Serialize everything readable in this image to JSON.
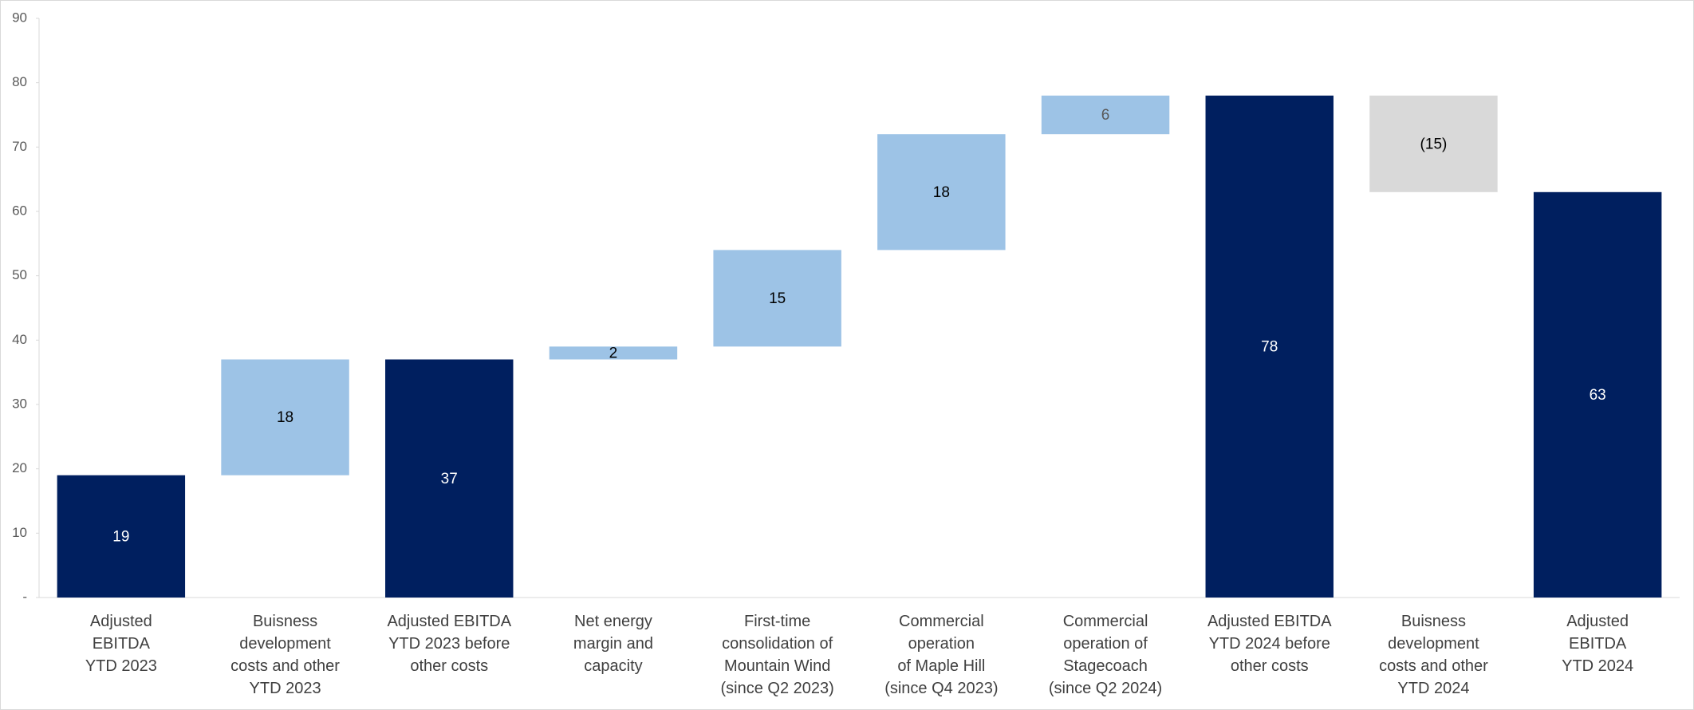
{
  "chart_data": {
    "type": "waterfall",
    "categories": [
      "Adjusted\nEBITDA\nYTD 2023",
      "Buisness\ndevelopment\ncosts and other\nYTD 2023",
      "Adjusted EBITDA\nYTD 2023 before\nother costs",
      "Net energy\nmargin and\ncapacity",
      "First-time\nconsolidation of\nMountain Wind\n(since Q2 2023)",
      "Commercial\noperation\nof Maple Hill\n(since Q4 2023)",
      "Commercial\noperation of\nStagecoach\n(since Q2 2024)",
      "Adjusted EBITDA\nYTD 2024 before\nother costs",
      "Buisness\ndevelopment\ncosts and other\nYTD 2024",
      "Adjusted\nEBITDA\nYTD 2024"
    ],
    "values": [
      19,
      18,
      37,
      2,
      15,
      18,
      6,
      78,
      -15,
      63
    ],
    "value_labels": [
      "19",
      "18",
      "37",
      "2",
      "15",
      "18",
      "6",
      "78",
      "(15)",
      "63"
    ],
    "measure": [
      "absolute",
      "relative",
      "absolute",
      "relative",
      "relative",
      "relative",
      "relative",
      "absolute",
      "relative",
      "absolute"
    ],
    "colors": [
      "#001f5f",
      "#9dc3e6",
      "#001f5f",
      "#9dc3e6",
      "#9dc3e6",
      "#9dc3e6",
      "#9dc3e6",
      "#001f5f",
      "#d9d9d9",
      "#001f5f"
    ],
    "ylim": [
      0,
      90
    ],
    "yticks": [
      {
        "value": 0,
        "label": "-"
      },
      10,
      20,
      30,
      40,
      50,
      60,
      70,
      80,
      90
    ],
    "grid": false
  }
}
